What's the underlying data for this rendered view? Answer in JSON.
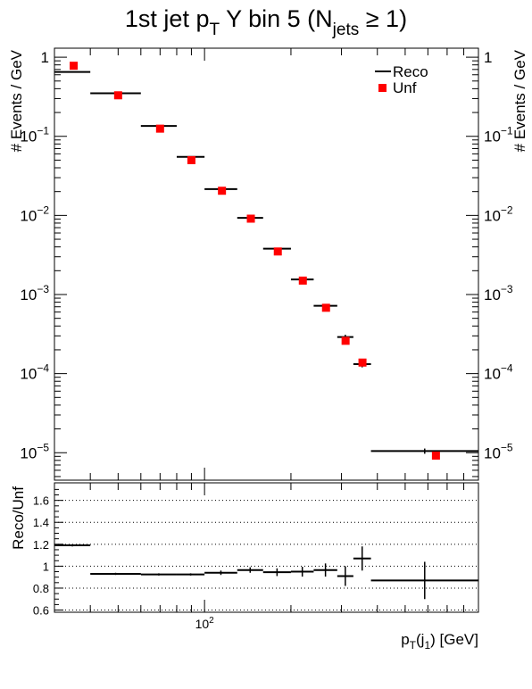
{
  "title": {
    "main": "1st jet p",
    "sub_t": "T",
    "mid": " Y bin 5 (N",
    "sub_jets": "jets",
    "tail": " ≥ 1)"
  },
  "chart_data": [
    {
      "type": "scatter",
      "panel": "top",
      "ylabel": "# Events / GeV",
      "yscale": "log",
      "ylim": [
        4.5e-06,
        1.3
      ],
      "xscale": "log",
      "xlim": [
        30,
        900
      ],
      "yticks": [
        {
          "v": 1,
          "base": "1",
          "exp": ""
        },
        {
          "v": 0.1,
          "base": "10",
          "exp": "−1"
        },
        {
          "v": 0.01,
          "base": "10",
          "exp": "−2"
        },
        {
          "v": 0.001,
          "base": "10",
          "exp": "−3"
        },
        {
          "v": 0.0001,
          "base": "10",
          "exp": "−4"
        },
        {
          "v": 1e-05,
          "base": "10",
          "exp": "−5"
        }
      ],
      "legend": {
        "placement": "top-right",
        "entries": [
          "Reco",
          "Unf"
        ]
      },
      "series": [
        {
          "name": "Reco",
          "style": "horizontal-bar",
          "color": "#000000",
          "bins": [
            {
              "xlo": 30,
              "xhi": 40,
              "y": 0.65,
              "err": 0
            },
            {
              "xlo": 40,
              "xhi": 60,
              "y": 0.35,
              "err": 0
            },
            {
              "xlo": 60,
              "xhi": 80,
              "y": 0.135,
              "err": 0
            },
            {
              "xlo": 80,
              "xhi": 100,
              "y": 0.055,
              "err": 0
            },
            {
              "xlo": 100,
              "xhi": 130,
              "y": 0.0215,
              "err": 0
            },
            {
              "xlo": 130,
              "xhi": 160,
              "y": 0.0093,
              "err": 0
            },
            {
              "xlo": 160,
              "xhi": 200,
              "y": 0.0038,
              "err": 0
            },
            {
              "xlo": 200,
              "xhi": 240,
              "y": 0.00155,
              "err": 0
            },
            {
              "xlo": 240,
              "xhi": 290,
              "y": 0.00072,
              "err": 0
            },
            {
              "xlo": 290,
              "xhi": 330,
              "y": 0.00029,
              "err": 2e-05
            },
            {
              "xlo": 330,
              "xhi": 380,
              "y": 0.000132,
              "err": 1.2e-05
            },
            {
              "xlo": 380,
              "xhi": 900,
              "y": 1.05e-05,
              "err": 8e-07
            }
          ]
        },
        {
          "name": "Unf",
          "style": "square-marker",
          "color": "#ff0000",
          "points": [
            {
              "x": 35,
              "y": 0.78
            },
            {
              "x": 50,
              "y": 0.33
            },
            {
              "x": 70,
              "y": 0.125
            },
            {
              "x": 90,
              "y": 0.05
            },
            {
              "x": 115,
              "y": 0.0205
            },
            {
              "x": 145,
              "y": 0.0091
            },
            {
              "x": 180,
              "y": 0.0035
            },
            {
              "x": 220,
              "y": 0.0015
            },
            {
              "x": 265,
              "y": 0.00068
            },
            {
              "x": 310,
              "y": 0.00026
            },
            {
              "x": 355,
              "y": 0.000138
            },
            {
              "x": 640,
              "y": 9.2e-06
            }
          ]
        }
      ]
    },
    {
      "type": "scatter",
      "panel": "bottom",
      "ylabel": "Reco/Unf",
      "xlabel_main": "p",
      "xlabel_sub_t": "T",
      "xlabel_mid": "(j",
      "xlabel_sub_1": "1",
      "xlabel_tail": ") [GeV]",
      "xscale": "log",
      "xlim": [
        30,
        900
      ],
      "ylim": [
        0.58,
        1.76
      ],
      "yticks": [
        {
          "v": 0.6,
          "label": "0.6"
        },
        {
          "v": 0.8,
          "label": "0.8"
        },
        {
          "v": 1.0,
          "label": "1"
        },
        {
          "v": 1.2,
          "label": "1.2"
        },
        {
          "v": 1.4,
          "label": "1.4"
        },
        {
          "v": 1.6,
          "label": "1.6"
        }
      ],
      "xticks": [
        {
          "v": 100,
          "base": "10",
          "exp": "2"
        }
      ],
      "grid": "horizontal-dotted",
      "series": [
        {
          "name": "",
          "color": "#000000",
          "bins": [
            {
              "xlo": 30,
              "xhi": 40,
              "y": 1.19,
              "err": 0.01
            },
            {
              "xlo": 40,
              "xhi": 60,
              "y": 0.93,
              "err": 0.01
            },
            {
              "xlo": 60,
              "xhi": 80,
              "y": 0.925,
              "err": 0.01
            },
            {
              "xlo": 80,
              "xhi": 100,
              "y": 0.925,
              "err": 0.01
            },
            {
              "xlo": 100,
              "xhi": 130,
              "y": 0.94,
              "err": 0.02
            },
            {
              "xlo": 130,
              "xhi": 160,
              "y": 0.965,
              "err": 0.025
            },
            {
              "xlo": 160,
              "xhi": 200,
              "y": 0.945,
              "err": 0.035
            },
            {
              "xlo": 200,
              "xhi": 240,
              "y": 0.95,
              "err": 0.045
            },
            {
              "xlo": 240,
              "xhi": 290,
              "y": 0.965,
              "err": 0.06
            },
            {
              "xlo": 290,
              "xhi": 330,
              "y": 0.91,
              "err": 0.09
            },
            {
              "xlo": 330,
              "xhi": 380,
              "y": 1.07,
              "err": 0.11
            },
            {
              "xlo": 380,
              "xhi": 900,
              "y": 0.87,
              "err": 0.17
            }
          ]
        }
      ]
    }
  ]
}
